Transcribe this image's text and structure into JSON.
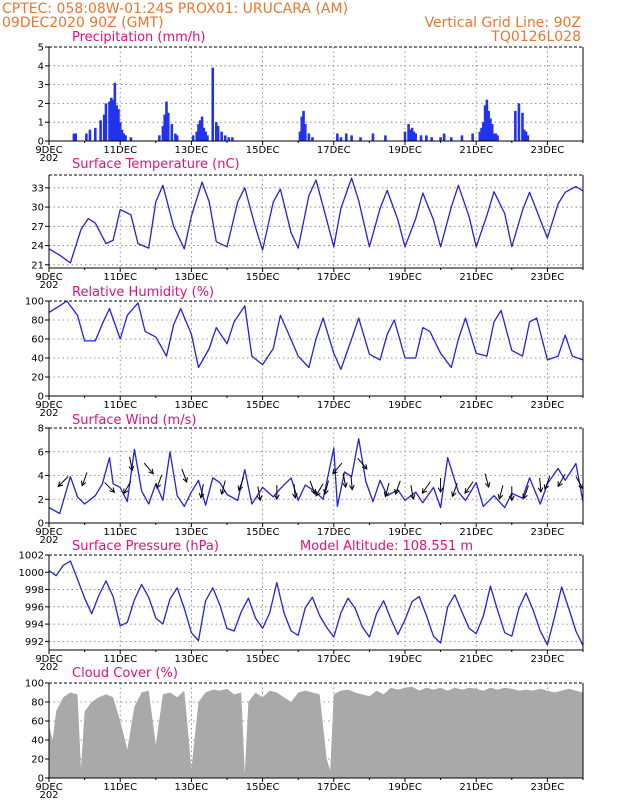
{
  "header": {
    "line1_left": "CPTEC:   058:08W-01:24S   PROX01: URUCARA (AM)",
    "line2_left": "09DEC2020 90Z (GMT)",
    "line2_right": "Vertical Grid Line: 90Z",
    "line3_right": "TQ0126L028"
  },
  "colors": {
    "header": "#e8772e",
    "title": "#e0107a",
    "series": "#2222dd",
    "bars": "#2233ee",
    "cloud": "#a9a9a9"
  },
  "x_axis": {
    "tick_labels": [
      "9DEC",
      "11DEC",
      "13DEC",
      "15DEC",
      "17DEC",
      "19DEC",
      "21DEC",
      "23DEC"
    ],
    "tick_days": [
      9,
      11,
      13,
      15,
      17,
      19,
      21,
      23
    ],
    "stub_label": "202",
    "range_days": [
      9,
      24
    ]
  },
  "chart_data": [
    {
      "type": "bar",
      "title": "Precipitation (mm/h)",
      "ylim": [
        0,
        5
      ],
      "yticks": [
        "0",
        "1",
        "2",
        "3",
        "4",
        "5"
      ],
      "x_unit": "day of Dec 2020",
      "x": [
        9.7,
        9.75,
        10.05,
        10.15,
        10.3,
        10.45,
        10.55,
        10.6,
        10.7,
        10.75,
        10.8,
        10.85,
        10.9,
        10.95,
        11.0,
        11.05,
        11.1,
        11.15,
        11.3,
        12.1,
        12.2,
        12.25,
        12.3,
        12.35,
        12.45,
        12.55,
        12.6,
        13.05,
        13.15,
        13.2,
        13.25,
        13.3,
        13.35,
        13.4,
        13.45,
        13.6,
        13.7,
        13.75,
        13.85,
        13.95,
        14.05,
        14.15,
        16.05,
        16.1,
        16.15,
        16.2,
        16.3,
        16.4,
        17.1,
        17.2,
        17.35,
        17.5,
        17.75,
        18.1,
        18.45,
        19.0,
        19.1,
        19.15,
        19.2,
        19.25,
        19.3,
        19.45,
        19.6,
        19.75,
        20.0,
        20.1,
        20.3,
        20.6,
        20.9,
        21.1,
        21.15,
        21.2,
        21.25,
        21.3,
        21.35,
        21.4,
        21.45,
        21.5,
        21.55,
        21.6,
        22.1,
        22.2,
        22.3,
        22.35,
        22.4,
        22.45
      ],
      "values": [
        0.4,
        0.4,
        0.4,
        0.6,
        0.7,
        1.1,
        1.4,
        2.0,
        2.1,
        2.3,
        2.2,
        3.1,
        1.9,
        1.7,
        1.0,
        0.6,
        0.4,
        0.3,
        0.2,
        0.3,
        0.8,
        1.4,
        2.1,
        1.5,
        0.9,
        0.4,
        0.3,
        0.3,
        0.5,
        0.9,
        1.1,
        1.3,
        0.7,
        0.5,
        0.3,
        3.9,
        1.0,
        0.8,
        0.5,
        0.3,
        0.2,
        0.2,
        0.5,
        1.3,
        1.6,
        0.9,
        0.4,
        0.2,
        0.4,
        0.2,
        0.4,
        0.3,
        0.2,
        0.4,
        0.3,
        0.5,
        0.9,
        0.6,
        0.7,
        0.5,
        0.4,
        0.3,
        0.3,
        0.2,
        0.2,
        0.4,
        0.2,
        0.3,
        0.4,
        0.5,
        0.7,
        1.0,
        1.9,
        2.2,
        1.6,
        1.2,
        0.9,
        0.4,
        0.4,
        0.3,
        1.6,
        2.0,
        1.5,
        0.6,
        0.5,
        0.3
      ]
    },
    {
      "type": "line",
      "title": "Surface Temperature (nC)",
      "ylim": [
        20.5,
        35
      ],
      "yticks": [
        "21",
        "24",
        "27",
        "30",
        "33"
      ],
      "x": [
        9.0,
        9.3,
        9.6,
        9.9,
        10.1,
        10.3,
        10.6,
        10.8,
        11.0,
        11.3,
        11.5,
        11.8,
        12.0,
        12.2,
        12.5,
        12.8,
        13.0,
        13.3,
        13.5,
        13.7,
        14.0,
        14.3,
        14.5,
        14.8,
        15.0,
        15.3,
        15.5,
        15.8,
        16.0,
        16.3,
        16.5,
        16.8,
        17.0,
        17.2,
        17.5,
        17.7,
        18.0,
        18.3,
        18.5,
        18.8,
        19.0,
        19.3,
        19.5,
        19.8,
        20.0,
        20.3,
        20.5,
        20.8,
        21.0,
        21.3,
        21.5,
        21.8,
        22.0,
        22.3,
        22.5,
        22.8,
        23.0,
        23.3,
        23.5,
        23.8,
        24.0
      ],
      "values": [
        23.5,
        22.5,
        21.3,
        26.5,
        28.2,
        27.5,
        24.3,
        24.8,
        29.6,
        28.8,
        24.3,
        23.6,
        30.8,
        33.4,
        27.0,
        23.5,
        28.6,
        33.9,
        30.8,
        24.6,
        23.8,
        30.8,
        33.0,
        26.8,
        23.3,
        30.8,
        32.8,
        26.0,
        23.6,
        31.8,
        34.2,
        28.0,
        23.8,
        29.8,
        34.5,
        31.0,
        23.8,
        29.8,
        32.6,
        28.0,
        23.8,
        28.2,
        32.2,
        28.0,
        23.8,
        30.0,
        33.4,
        28.5,
        23.8,
        28.7,
        32.4,
        29.0,
        23.8,
        29.5,
        32.3,
        28.0,
        25.2,
        30.5,
        32.3,
        33.2,
        32.5
      ]
    },
    {
      "type": "line",
      "title": "Relative Humidity (%)",
      "ylim": [
        0,
        100
      ],
      "yticks": [
        "0",
        "20",
        "40",
        "60",
        "80",
        "100"
      ],
      "x": [
        9.0,
        9.3,
        9.5,
        9.8,
        10.0,
        10.3,
        10.5,
        10.7,
        11.0,
        11.2,
        11.5,
        11.7,
        12.0,
        12.3,
        12.5,
        12.7,
        13.0,
        13.2,
        13.5,
        13.7,
        14.0,
        14.2,
        14.5,
        14.7,
        15.0,
        15.3,
        15.5,
        15.7,
        16.0,
        16.3,
        16.5,
        16.7,
        17.0,
        17.2,
        17.5,
        17.7,
        18.0,
        18.3,
        18.5,
        18.7,
        19.0,
        19.3,
        19.5,
        19.7,
        20.0,
        20.3,
        20.5,
        20.7,
        21.0,
        21.3,
        21.5,
        21.7,
        22.0,
        22.3,
        22.5,
        22.7,
        23.0,
        23.3,
        23.5,
        23.7,
        24.0
      ],
      "values": [
        88,
        95,
        100,
        85,
        58,
        58,
        76,
        92,
        60,
        85,
        98,
        68,
        62,
        42,
        75,
        92,
        65,
        30,
        50,
        72,
        55,
        78,
        95,
        42,
        33,
        50,
        85,
        68,
        42,
        30,
        60,
        82,
        45,
        28,
        60,
        82,
        44,
        38,
        65,
        80,
        40,
        40,
        72,
        68,
        45,
        30,
        60,
        82,
        45,
        42,
        78,
        90,
        48,
        42,
        78,
        82,
        38,
        42,
        64,
        42,
        38
      ]
    },
    {
      "type": "line",
      "title": "Surface Wind (m/s)",
      "ylim": [
        0,
        8
      ],
      "yticks": [
        "0",
        "2",
        "4",
        "6",
        "8"
      ],
      "x": [
        9.0,
        9.3,
        9.6,
        9.8,
        10.0,
        10.3,
        10.5,
        10.7,
        10.8,
        11.0,
        11.2,
        11.4,
        11.6,
        11.8,
        12.0,
        12.2,
        12.4,
        12.6,
        12.8,
        13.0,
        13.2,
        13.4,
        13.6,
        13.8,
        14.0,
        14.3,
        14.5,
        14.7,
        15.0,
        15.3,
        15.5,
        15.8,
        16.0,
        16.2,
        16.5,
        16.7,
        17.0,
        17.1,
        17.3,
        17.5,
        17.7,
        17.9,
        18.1,
        18.3,
        18.5,
        18.8,
        19.0,
        19.3,
        19.5,
        19.8,
        20.0,
        20.2,
        20.5,
        20.7,
        21.0,
        21.2,
        21.5,
        21.8,
        22.0,
        22.3,
        22.5,
        22.8,
        23.0,
        23.3,
        23.5,
        23.8,
        24.0
      ],
      "values": [
        1.3,
        0.8,
        3.9,
        2.2,
        1.6,
        2.3,
        3.3,
        5.5,
        3.3,
        3.0,
        1.8,
        6.2,
        2.7,
        1.6,
        3.3,
        1.9,
        6.0,
        2.3,
        1.4,
        2.6,
        3.6,
        1.5,
        3.8,
        3.4,
        2.4,
        1.9,
        4.5,
        1.6,
        3.0,
        2.2,
        2.9,
        3.8,
        1.9,
        3.2,
        2.6,
        2.0,
        6.3,
        1.4,
        4.3,
        3.9,
        7.1,
        3.5,
        1.8,
        3.6,
        2.3,
        2.8,
        1.9,
        2.6,
        1.7,
        3.0,
        1.3,
        5.5,
        2.6,
        1.9,
        3.4,
        1.4,
        2.3,
        1.3,
        2.5,
        2.1,
        3.8,
        1.6,
        3.3,
        4.6,
        3.6,
        5.0,
        1.8
      ]
    },
    {
      "type": "line",
      "title": "Surface Pressure (hPa)",
      "annotation": "Model Altitude: 108.551  m",
      "ylim": [
        991,
        1002
      ],
      "yticks": [
        "992",
        "994",
        "996",
        "998",
        "1000",
        "1002"
      ],
      "x": [
        9.0,
        9.2,
        9.4,
        9.6,
        9.8,
        10.0,
        10.2,
        10.4,
        10.6,
        10.8,
        11.0,
        11.2,
        11.4,
        11.6,
        11.8,
        12.0,
        12.2,
        12.4,
        12.6,
        12.8,
        13.0,
        13.2,
        13.4,
        13.6,
        13.8,
        14.0,
        14.2,
        14.4,
        14.6,
        14.8,
        15.0,
        15.2,
        15.4,
        15.6,
        15.8,
        16.0,
        16.2,
        16.4,
        16.6,
        16.8,
        17.0,
        17.2,
        17.4,
        17.6,
        17.8,
        18.0,
        18.2,
        18.4,
        18.6,
        18.8,
        19.0,
        19.2,
        19.4,
        19.6,
        19.8,
        20.0,
        20.2,
        20.4,
        20.6,
        20.8,
        21.0,
        21.2,
        21.4,
        21.6,
        21.8,
        22.0,
        22.2,
        22.4,
        22.6,
        22.8,
        23.0,
        23.2,
        23.4,
        23.6,
        23.8,
        24.0
      ],
      "values": [
        1000.2,
        999.6,
        1000.8,
        1001.3,
        999.2,
        997.0,
        995.2,
        997.3,
        999.0,
        997.2,
        993.8,
        994.2,
        996.8,
        998.6,
        997.1,
        994.7,
        994.0,
        996.9,
        998.2,
        995.8,
        993.0,
        992.1,
        996.7,
        998.2,
        996.2,
        993.5,
        993.2,
        995.4,
        997.0,
        994.7,
        993.5,
        995.3,
        998.8,
        995.3,
        993.2,
        992.7,
        995.9,
        997.1,
        995.0,
        993.6,
        992.5,
        995.3,
        997.0,
        995.8,
        993.7,
        992.5,
        995.2,
        996.7,
        994.6,
        992.8,
        994.5,
        996.6,
        997.2,
        995.0,
        992.6,
        991.8,
        996.0,
        997.4,
        995.4,
        993.5,
        992.9,
        994.9,
        998.4,
        995.6,
        993.0,
        992.6,
        995.8,
        997.6,
        995.6,
        993.2,
        991.6,
        994.8,
        998.3,
        995.8,
        993.2,
        991.5
      ]
    },
    {
      "type": "area",
      "title": "Cloud Cover (%)",
      "ylim": [
        0,
        100
      ],
      "yticks": [
        "0",
        "20",
        "40",
        "60",
        "80",
        "100"
      ],
      "x": [
        9.0,
        9.1,
        9.2,
        9.4,
        9.6,
        9.8,
        9.9,
        10.0,
        10.2,
        10.4,
        10.6,
        10.8,
        11.0,
        11.2,
        11.4,
        11.6,
        11.8,
        12.0,
        12.2,
        12.4,
        12.6,
        12.8,
        13.0,
        13.2,
        13.4,
        13.6,
        13.8,
        14.0,
        14.2,
        14.4,
        14.5,
        14.6,
        14.8,
        15.0,
        15.2,
        15.4,
        15.6,
        15.8,
        16.0,
        16.2,
        16.4,
        16.6,
        16.8,
        16.9,
        17.0,
        17.2,
        17.4,
        17.6,
        17.8,
        18.0,
        18.2,
        18.4,
        18.6,
        18.8,
        19.0,
        19.2,
        19.4,
        19.6,
        19.8,
        20.0,
        20.2,
        20.4,
        20.6,
        20.8,
        21.0,
        21.2,
        21.4,
        21.6,
        21.8,
        22.0,
        22.2,
        22.4,
        22.6,
        22.8,
        23.0,
        23.2,
        23.4,
        23.6,
        23.8,
        24.0
      ],
      "values": [
        55,
        40,
        70,
        85,
        90,
        88,
        10,
        70,
        80,
        85,
        88,
        85,
        60,
        30,
        75,
        90,
        92,
        35,
        88,
        90,
        85,
        92,
        10,
        80,
        90,
        93,
        92,
        94,
        88,
        90,
        5,
        80,
        90,
        85,
        92,
        90,
        85,
        80,
        90,
        92,
        90,
        88,
        20,
        8,
        88,
        92,
        93,
        90,
        88,
        86,
        92,
        88,
        95,
        93,
        95,
        96,
        92,
        95,
        93,
        95,
        92,
        95,
        93,
        95,
        94,
        92,
        95,
        93,
        95,
        94,
        92,
        93,
        92,
        94,
        92,
        90,
        92,
        94,
        92,
        90
      ]
    }
  ],
  "wind_vectors": {
    "x": [
      9.4,
      10.0,
      10.7,
      11.2,
      11.3,
      11.8,
      12.1,
      12.8,
      13.3,
      13.9,
      14.4,
      14.9,
      15.4,
      15.9,
      16.4,
      16.6,
      16.8,
      17.1,
      17.3,
      17.5,
      17.8,
      18.5,
      18.8,
      19.2,
      19.6,
      20.0,
      20.4,
      20.8,
      21.3,
      21.7,
      22.0,
      22.4,
      22.8,
      23.0,
      23.4,
      23.9
    ],
    "dir_deg": [
      225,
      200,
      135,
      210,
      170,
      140,
      200,
      160,
      190,
      195,
      200,
      170,
      180,
      175,
      160,
      210,
      195,
      220,
      170,
      175,
      140,
      195,
      200,
      170,
      215,
      180,
      200,
      215,
      165,
      195,
      180,
      200,
      175,
      200,
      210,
      150
    ],
    "speed_ms": [
      3.5,
      3.7,
      3.0,
      3.0,
      5.0,
      4.6,
      3.5,
      4.0,
      2.7,
      3.0,
      3.3,
      2.5,
      2.6,
      2.7,
      3.0,
      2.8,
      3.0,
      4.6,
      3.6,
      3.4,
      5.0,
      2.8,
      3.0,
      2.6,
      3.0,
      3.2,
      2.8,
      3.0,
      3.6,
      2.6,
      2.5,
      2.6,
      3.2,
      3.4,
      3.6,
      3.4
    ]
  }
}
